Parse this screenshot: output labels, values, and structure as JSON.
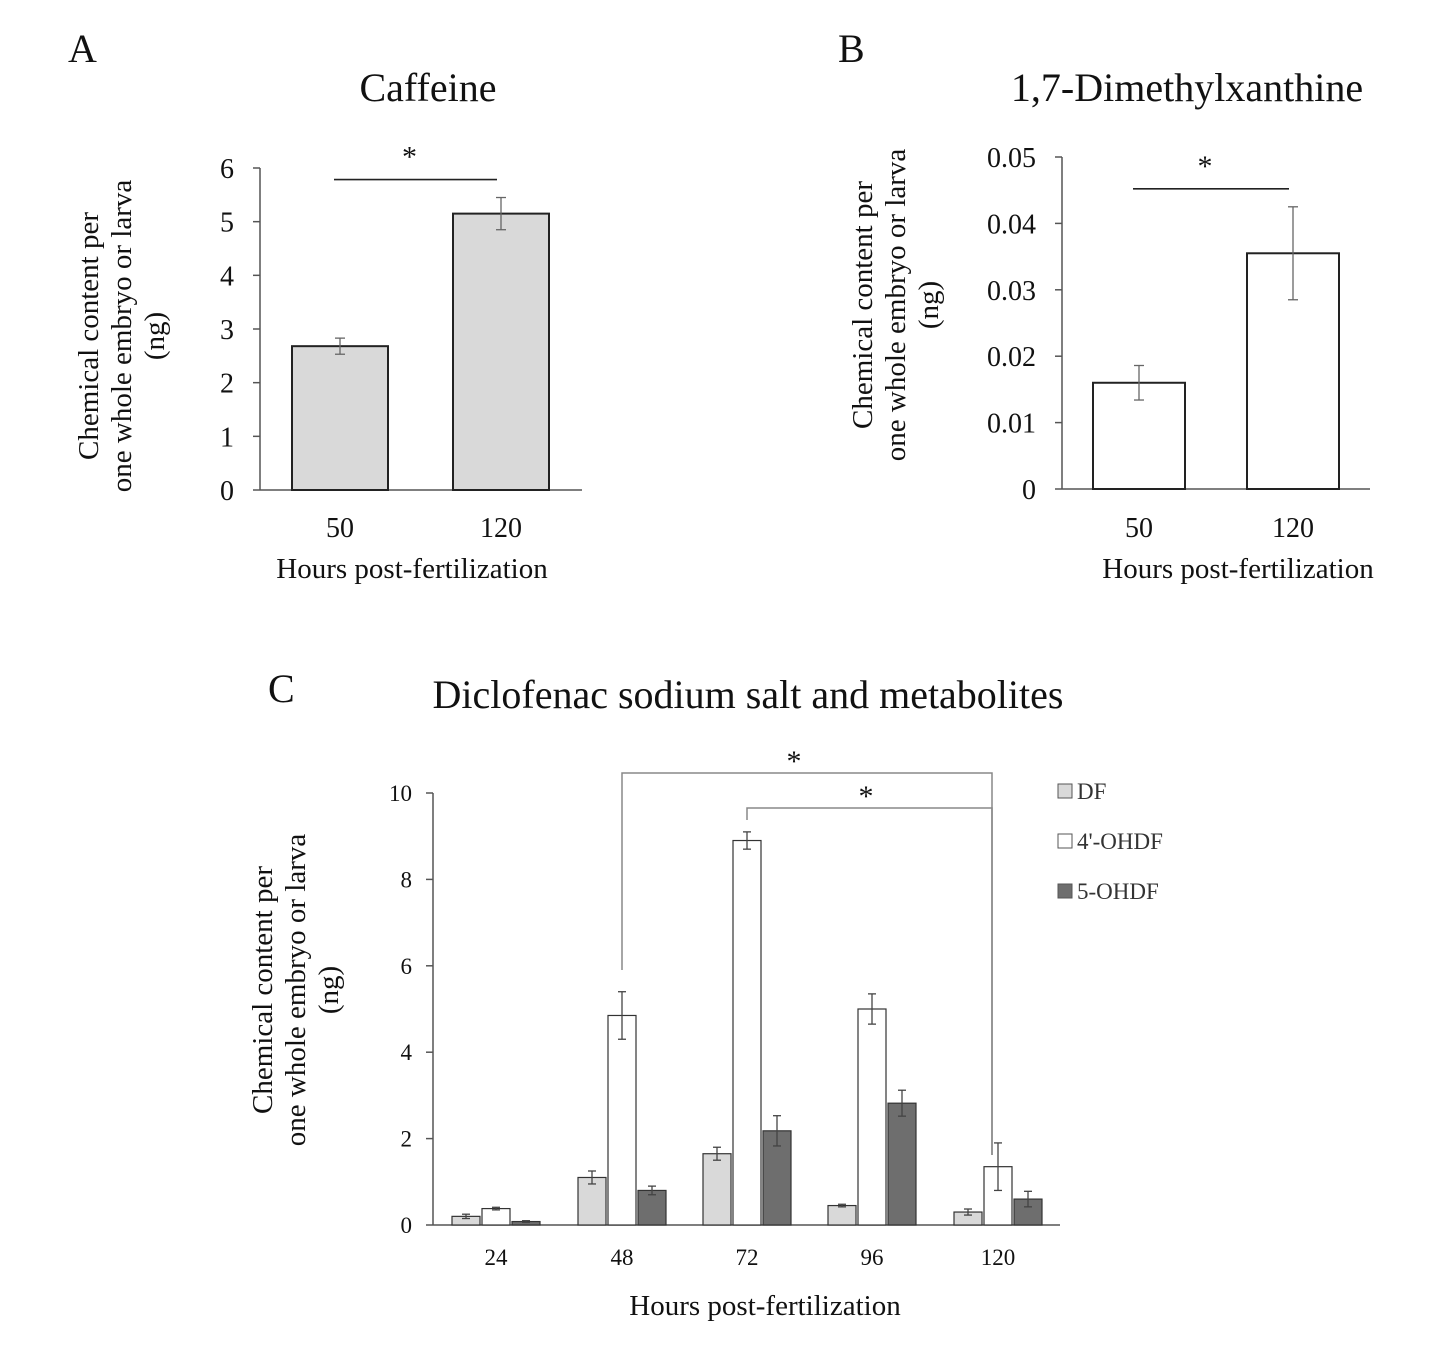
{
  "chart_data": [
    {
      "panel": "A",
      "type": "bar",
      "title": "Caffeine",
      "categories": [
        "50",
        "120"
      ],
      "values": [
        2.68,
        5.15
      ],
      "errors": [
        0.15,
        0.3
      ],
      "xlabel": "Hours post-fertilization",
      "ylabel_lines": [
        "Chemical content per",
        "one whole embryo or larva",
        "(ng)"
      ],
      "ylim": [
        0,
        6
      ],
      "yticks": [
        "0",
        "1",
        "2",
        "3",
        "4",
        "5",
        "6"
      ],
      "bar_color": "#d9d9d9",
      "significance": [
        {
          "from": "50",
          "to": "120",
          "label": "*"
        }
      ]
    },
    {
      "panel": "B",
      "type": "bar",
      "title": "1,7-Dimethylxanthine",
      "categories": [
        "50",
        "120"
      ],
      "values": [
        0.016,
        0.0355
      ],
      "errors": [
        0.0026,
        0.007
      ],
      "xlabel": "Hours post-fertilization",
      "ylabel_lines": [
        "Chemical content per",
        "one whole embryo or larva",
        "(ng)"
      ],
      "ylim": [
        0,
        0.05
      ],
      "yticks": [
        "0",
        "0.01",
        "0.02",
        "0.03",
        "0.04",
        "0.05"
      ],
      "bar_color": "#ffffff",
      "significance": [
        {
          "from": "50",
          "to": "120",
          "label": "*"
        }
      ]
    },
    {
      "panel": "C",
      "type": "bar",
      "title": "Diclofenac sodium salt and metabolites",
      "categories": [
        "24",
        "48",
        "72",
        "96",
        "120"
      ],
      "series": [
        {
          "name": "DF",
          "color": "#d9d9d9",
          "values": [
            0.2,
            1.1,
            1.65,
            0.45,
            0.3
          ],
          "errors": [
            0.05,
            0.15,
            0.15,
            0.03,
            0.07
          ]
        },
        {
          "name": "4'-OHDF",
          "color": "#ffffff",
          "values": [
            0.38,
            4.85,
            8.9,
            5.0,
            1.35
          ],
          "errors": [
            0.03,
            0.55,
            0.2,
            0.35,
            0.55
          ]
        },
        {
          "name": "5-OHDF",
          "color": "#6e6e6e",
          "values": [
            0.08,
            0.8,
            2.18,
            2.82,
            0.6
          ],
          "errors": [
            0.02,
            0.1,
            0.35,
            0.3,
            0.18
          ]
        }
      ],
      "xlabel": "Hours post-fertilization",
      "ylabel_lines": [
        "Chemical content per",
        "one whole embryo or larva",
        "(ng)"
      ],
      "ylim": [
        0,
        10
      ],
      "yticks": [
        "0",
        "2",
        "4",
        "6",
        "8",
        "10"
      ],
      "significance": [
        {
          "from": "48",
          "to": "120",
          "series": "4'-OHDF",
          "label": "*"
        },
        {
          "from": "72",
          "to": "120",
          "series": "4'-OHDF",
          "label": "*"
        }
      ]
    }
  ]
}
